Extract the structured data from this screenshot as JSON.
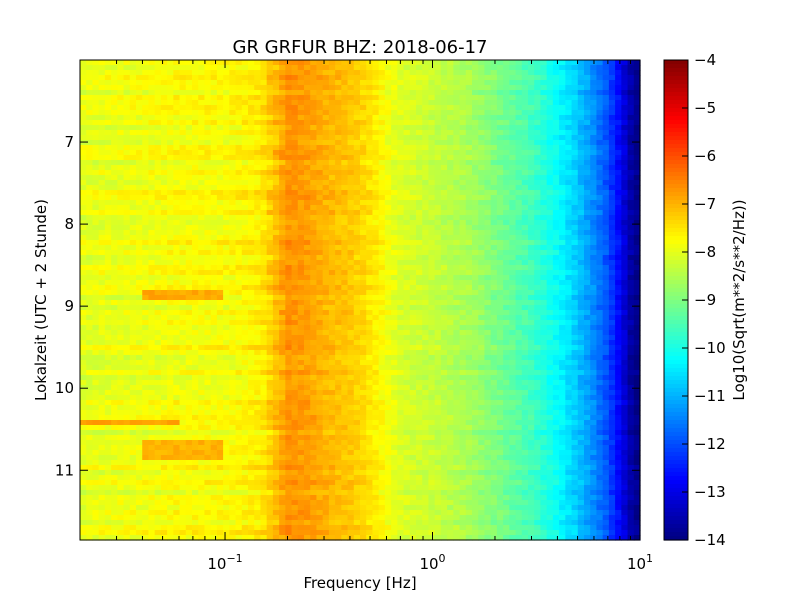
{
  "chart_data": {
    "type": "heatmap",
    "title": "GR GRFUR BHZ: 2018-06-17",
    "xlabel": "Frequency [Hz]",
    "ylabel": "Lokalzeit (UTC + 2 Stunde)",
    "x_scale": "log",
    "xlim": [
      0.02,
      10
    ],
    "x_ticks": [
      {
        "value": 0.1,
        "base": "10",
        "exp": "−1"
      },
      {
        "value": 1,
        "base": "10",
        "exp": "0"
      },
      {
        "value": 10,
        "base": "10",
        "exp": "1"
      }
    ],
    "ylim": [
      6.0,
      11.85
    ],
    "y_inverted": true,
    "y_ticks": [
      7,
      8,
      9,
      10,
      11
    ],
    "colorbar": {
      "label": "Log10(Sqrt(m**2/s**2/Hz))",
      "colormap": "jet",
      "range": [
        -14,
        -4
      ],
      "ticks": [
        -4,
        -5,
        -6,
        -7,
        -8,
        -9,
        -10,
        -11,
        -12,
        -13,
        -14
      ]
    },
    "spectrum_profile": {
      "frequency_hz": [
        0.02,
        0.04,
        0.06,
        0.1,
        0.15,
        0.2,
        0.25,
        0.3,
        0.4,
        0.5,
        0.7,
        1.0,
        1.5,
        2.0,
        3.0,
        4.0,
        5.0,
        6.0,
        7.0,
        8.0,
        9.0,
        10.0
      ],
      "log10_amplitude": [
        -8.0,
        -7.9,
        -7.8,
        -7.8,
        -7.6,
        -6.7,
        -6.8,
        -7.0,
        -7.2,
        -7.5,
        -8.1,
        -8.3,
        -8.6,
        -9.0,
        -9.6,
        -10.2,
        -10.8,
        -11.4,
        -12.0,
        -12.8,
        -13.6,
        -14.0
      ]
    },
    "events": [
      {
        "time_hours": [
          8.8,
          8.95
        ],
        "frequency_hz": [
          0.04,
          0.1
        ],
        "log10_amplitude": -6.9
      },
      {
        "time_hours": [
          10.65,
          10.85
        ],
        "frequency_hz": [
          0.04,
          0.1
        ],
        "log10_amplitude": -7.0
      },
      {
        "time_hours": [
          10.4,
          10.45
        ],
        "frequency_hz": [
          0.02,
          0.06
        ],
        "log10_amplitude": -6.8
      }
    ]
  }
}
